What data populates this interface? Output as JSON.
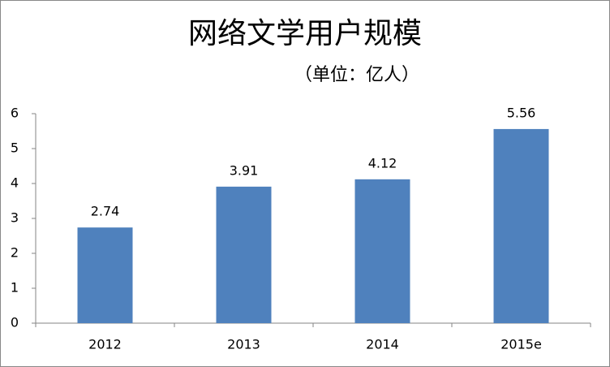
{
  "chart_data": {
    "type": "bar",
    "title": "网络文学用户规模",
    "subtitle": "（单位：亿人）",
    "categories": [
      "2012",
      "2013",
      "2014",
      "2015e"
    ],
    "values": [
      2.74,
      3.91,
      4.12,
      5.56
    ],
    "color": "#4f81bd",
    "ylim": [
      0,
      6
    ],
    "yticks": [
      0,
      1,
      2,
      3,
      4,
      5,
      6
    ],
    "grid": false
  }
}
